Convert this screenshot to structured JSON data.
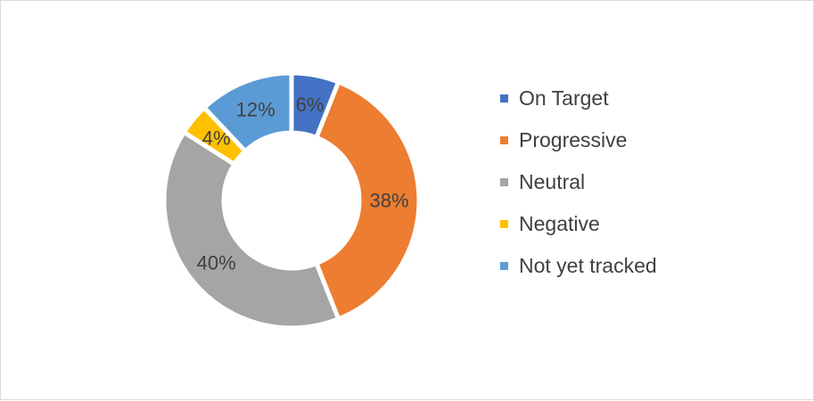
{
  "chart_data": {
    "type": "pie",
    "variant": "donut",
    "title": "",
    "legend_position": "right",
    "categories": [
      "On Target",
      "Progressive",
      "Neutral",
      "Negative",
      "Not yet tracked"
    ],
    "values": [
      6,
      38,
      40,
      4,
      12
    ],
    "labels": [
      "6%",
      "38%",
      "40%",
      "4%",
      "12%"
    ],
    "colors": [
      "#4472C4",
      "#ED7D31",
      "#A5A5A5",
      "#FFC000",
      "#5B9BD5"
    ]
  }
}
